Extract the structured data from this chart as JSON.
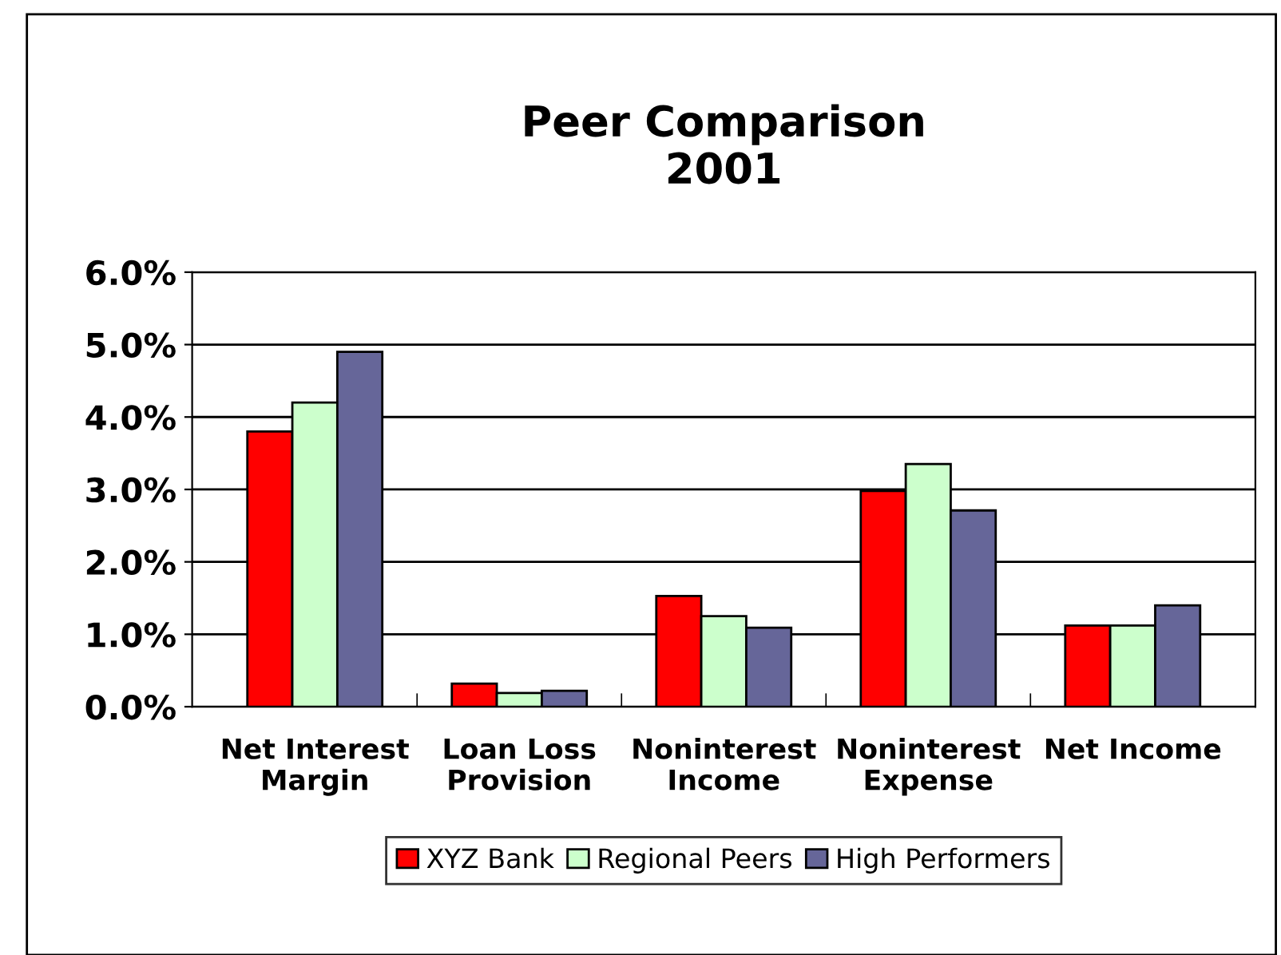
{
  "chart_data": {
    "type": "bar",
    "title": "Peer Comparison\n2001",
    "categories": [
      "Net Interest\nMargin",
      "Loan Loss\nProvision",
      "Noninterest\nIncome",
      "Noninterest\nExpense",
      "Net Income"
    ],
    "series": [
      {
        "name": "XYZ Bank",
        "color": "#ff0000",
        "values": [
          3.8,
          0.32,
          1.53,
          2.98,
          1.12
        ]
      },
      {
        "name": "Regional Peers",
        "color": "#ccffcc",
        "values": [
          4.2,
          0.19,
          1.25,
          3.35,
          1.12
        ]
      },
      {
        "name": "High Performers",
        "color": "#666699",
        "values": [
          4.9,
          0.22,
          1.09,
          2.71,
          1.4
        ]
      }
    ],
    "ylim": [
      0,
      6
    ],
    "yticks": [
      {
        "value": 0,
        "label": "0.0%"
      },
      {
        "value": 1,
        "label": "1.0%"
      },
      {
        "value": 2,
        "label": "2.0%"
      },
      {
        "value": 3,
        "label": "3.0%"
      },
      {
        "value": 4,
        "label": "4.0%"
      },
      {
        "value": 5,
        "label": "5.0%"
      },
      {
        "value": 6,
        "label": "6.0%"
      }
    ],
    "grid": "y",
    "legend": "bottom"
  }
}
